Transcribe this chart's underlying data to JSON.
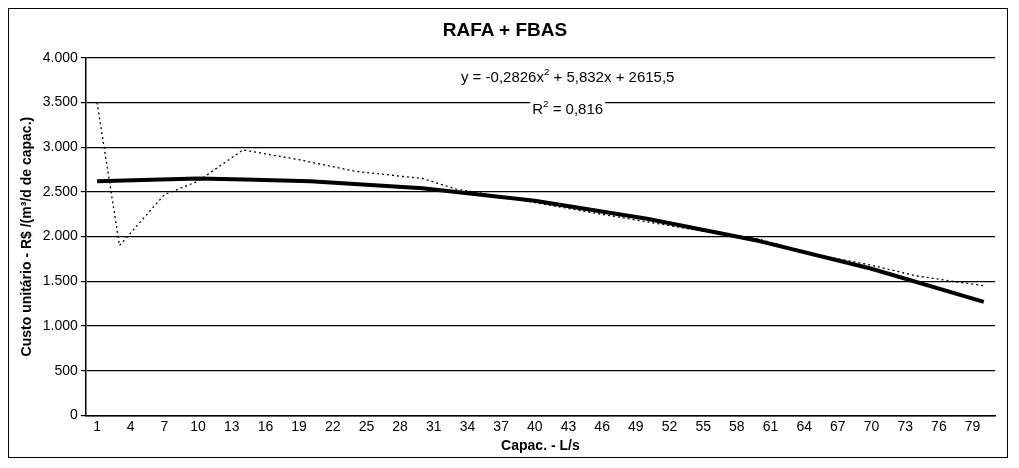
{
  "chart_data": {
    "type": "line",
    "title": "RAFA + FBAS",
    "xlabel": "Capac. - L/s",
    "ylabel": "Custo unitário - R$ /(m³/d de capac.)",
    "xlim": [
      0,
      81
    ],
    "xticks": [
      1,
      4,
      7,
      10,
      13,
      16,
      19,
      22,
      25,
      28,
      31,
      34,
      37,
      40,
      43,
      46,
      49,
      52,
      55,
      58,
      61,
      64,
      67,
      70,
      73,
      76,
      79
    ],
    "ylim": [
      0,
      4000
    ],
    "yticks": [
      {
        "value": 0,
        "label": "0"
      },
      {
        "value": 500,
        "label": "500"
      },
      {
        "value": 1000,
        "label": "1.000"
      },
      {
        "value": 1500,
        "label": "1.500"
      },
      {
        "value": 2000,
        "label": "2.000"
      },
      {
        "value": 2500,
        "label": "2.500"
      },
      {
        "value": 3000,
        "label": "3.000"
      },
      {
        "value": 3500,
        "label": "3.500"
      },
      {
        "value": 4000,
        "label": "4.000"
      }
    ],
    "grid": "y",
    "legend": false,
    "marker": "none",
    "annotations": [
      "y = -0,2826x$^{2}$ + 5,832x + 2615,5",
      "R$^{2}$ = 0,816"
    ],
    "series": [
      {
        "color": "#000000",
        "line_style": "dotted",
        "x": [
          1,
          3,
          7,
          10,
          14,
          19,
          24,
          30,
          33,
          36,
          45,
          55,
          60,
          65,
          70,
          74,
          80
        ],
        "values": [
          3500,
          1900,
          2470,
          2620,
          2970,
          2860,
          2730,
          2650,
          2530,
          2470,
          2270,
          2060,
          1970,
          1800,
          1680,
          1560,
          1450
        ]
      },
      {
        "color": "#000000",
        "line_style": "solid",
        "x": [
          1,
          10,
          20,
          30,
          40,
          50,
          60,
          70,
          80
        ],
        "values": [
          2620,
          2650,
          2620,
          2540,
          2400,
          2200,
          1950,
          1640,
          1270
        ]
      }
    ]
  }
}
